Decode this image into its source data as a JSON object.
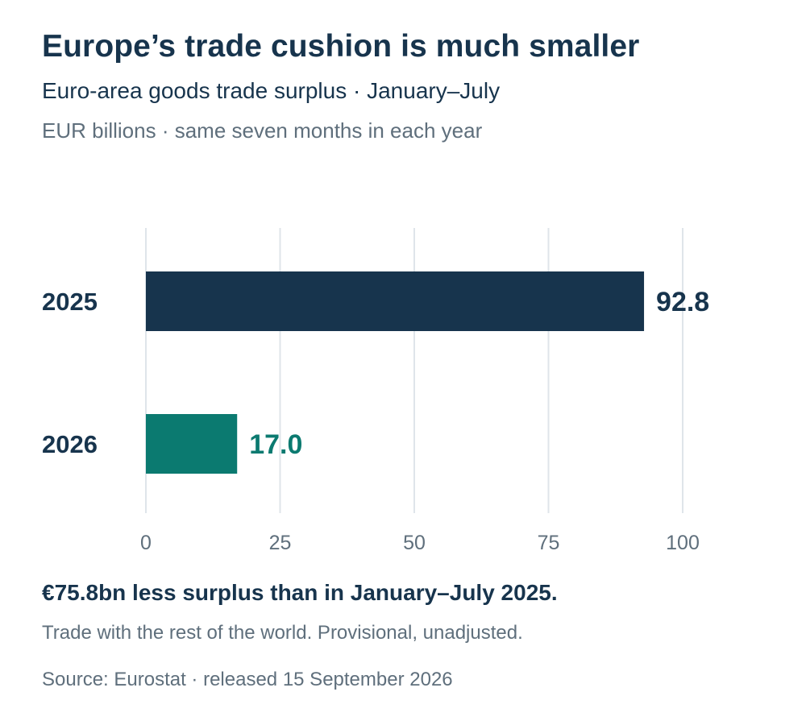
{
  "chart_data": {
    "type": "bar",
    "orientation": "horizontal",
    "title": "Europe’s trade cushion is much smaller",
    "subtitle": "Euro-area goods trade surplus · January–July",
    "unit_label": "EUR billions · same seven months in each year",
    "categories": [
      "2025",
      "2026"
    ],
    "values": [
      92.8,
      17.0
    ],
    "value_labels": [
      "92.8",
      "17.0"
    ],
    "colors": [
      "#17344d",
      "#0b7a70"
    ],
    "xlim": [
      0,
      100
    ],
    "x_ticks": [
      0,
      25,
      50,
      75,
      100
    ],
    "x_tick_labels": [
      "0",
      "25",
      "50",
      "75",
      "100"
    ],
    "grid": true,
    "legend": "none"
  },
  "callout": "€75.8bn less surplus than in January–July 2025.",
  "note": "Trade with the rest of the world. Provisional, unadjusted.",
  "source": "Source: Eurostat · released 15 September 2026",
  "colors": {
    "text_primary": "#17344d",
    "text_secondary": "#5f6f7c",
    "grid": "#dfe5ea"
  }
}
